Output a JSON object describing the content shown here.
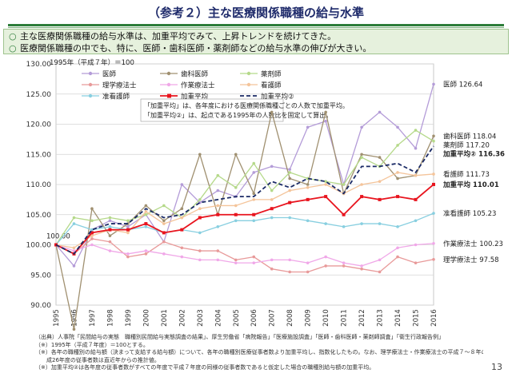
{
  "title": "（参考２）主な医療関係職種の給与水準",
  "bullets": [
    "主な医療関係職種の給与水準は、加重平均でみて、上昇トレンドを続けてきた。",
    "医療関係職種の中でも、特に、医師・歯科医師・薬剤師などの給与水準の伸びが大きい。"
  ],
  "bullet_mark": "○",
  "chart_data": {
    "type": "line",
    "base_note": "1995年（平成７年）＝100",
    "x": [
      "1995",
      "1996",
      "1997",
      "1998",
      "1999",
      "2000",
      "2001",
      "2002",
      "2003",
      "2004",
      "2005",
      "2006",
      "2007",
      "2008",
      "2009",
      "2010",
      "2011",
      "2012",
      "2013",
      "2014",
      "2015",
      "2016"
    ],
    "ylim": [
      90,
      130
    ],
    "yticks": [
      "90.00",
      "95.00",
      "100.00",
      "105.00",
      "110.00",
      "115.00",
      "120.00",
      "125.00",
      "130.00"
    ],
    "start_label": "100.00",
    "annotation_lines": [
      "「加重平均」は、各年度における医療関係職種ごとの人数で加重平均。",
      "「加重平均②」は、起点である1995年の人数比を固定して算出。"
    ],
    "series": [
      {
        "name": "医師",
        "color": "#b49cd8",
        "width": 1.3,
        "dash": "",
        "marker": "dot",
        "end_label": "医師 126.64",
        "values": [
          100,
          96.5,
          102.5,
          104,
          103,
          105,
          100.5,
          110,
          107,
          109,
          108,
          112,
          113,
          112.5,
          119.5,
          120.5,
          110,
          119.5,
          122,
          119.5,
          116,
          126.64
        ]
      },
      {
        "name": "歯科医師",
        "color": "#a09070",
        "width": 1.3,
        "dash": "",
        "marker": "dot",
        "end_label": "歯科医師 118.04",
        "values": [
          100,
          86,
          106,
          101.5,
          103.5,
          106.5,
          104,
          106,
          115,
          105,
          115,
          108.5,
          122,
          111,
          110,
          122,
          108.5,
          115,
          114.5,
          111,
          111.5,
          118.04
        ]
      },
      {
        "name": "薬剤師",
        "color": "#b5d98a",
        "width": 1.3,
        "dash": "",
        "marker": "dot",
        "end_label": "薬剤師 117.20",
        "values": [
          100,
          104.5,
          104,
          104.5,
          104,
          105,
          106.5,
          104.5,
          107.5,
          111.5,
          109.5,
          113.5,
          109,
          112,
          111,
          110.5,
          110,
          114.5,
          113,
          116.5,
          119,
          117.2
        ]
      },
      {
        "name": "理学療法士",
        "color": "#e89a9a",
        "width": 1.3,
        "dash": "",
        "marker": "dot",
        "end_label": "理学療法士 97.58",
        "values": [
          100,
          98.5,
          101,
          100.5,
          98,
          98.5,
          100.5,
          99.5,
          99,
          99,
          97.5,
          98,
          96,
          95.5,
          95.5,
          96.5,
          96.5,
          96,
          95.5,
          98,
          97,
          97.58
        ]
      },
      {
        "name": "作業療法士",
        "color": "#f0a8e8",
        "width": 1.3,
        "dash": "",
        "marker": "dot",
        "end_label": "作業療法士 100.23",
        "values": [
          100,
          99,
          100,
          99,
          98.5,
          99,
          98.5,
          98,
          97.5,
          97.5,
          97,
          97,
          97.5,
          97.5,
          97,
          98,
          97,
          96.5,
          97.5,
          99.5,
          100,
          100.23
        ]
      },
      {
        "name": "看護師",
        "color": "#f4c49a",
        "width": 1.3,
        "dash": "",
        "marker": "dot",
        "end_label": "看護師 111.73",
        "values": [
          100,
          99.5,
          101.5,
          102.5,
          102,
          105.5,
          103.5,
          104.5,
          106,
          106.5,
          106.5,
          107.5,
          107.5,
          109,
          109.5,
          110,
          108.5,
          110,
          110.5,
          112,
          111.5,
          111.73
        ]
      },
      {
        "name": "准看護師",
        "color": "#88cfe0",
        "width": 1.3,
        "dash": "",
        "marker": "dot",
        "end_label": "准看護師 105.23",
        "values": [
          100,
          103.5,
          102.5,
          103,
          102.5,
          103,
          102,
          102.5,
          102,
          103,
          104,
          104,
          104.5,
          104.5,
          104,
          103.5,
          103,
          103.5,
          103.5,
          103,
          104,
          105.23
        ]
      },
      {
        "name": "加重平均",
        "color": "#e8141e",
        "width": 1.8,
        "dash": "",
        "marker": "square",
        "end_label": "加重平均 110.01",
        "values": [
          100,
          98.5,
          102,
          102.5,
          102.5,
          103.5,
          102,
          102.5,
          104.5,
          105,
          105,
          105,
          106,
          107,
          107.5,
          108,
          105,
          108,
          107.5,
          108,
          107.5,
          110.01
        ]
      },
      {
        "name": "加重平均②",
        "color": "#1a2a66",
        "width": 1.8,
        "dash": "5,3",
        "marker": "none",
        "end_label": "加重平均② 116.36",
        "values": [
          100,
          98.5,
          102.5,
          103.5,
          103.5,
          106,
          104.5,
          105,
          107,
          107.5,
          108,
          108,
          110.5,
          109.5,
          111,
          110.5,
          108.5,
          113,
          113,
          113.5,
          112,
          116.36
        ]
      }
    ]
  },
  "footnotes": [
    "（出典）人事院「民間給与の実態　職種別民間給与実態調査の結果」、厚生労働省「病院報告」「医療施設調査」「医師・歯科医師・薬剤師調査」「衛生行政報告例」",
    "（※）1995年（平成７年度）＝100とする。",
    "（※）各年の職種別の給与額（決まって支給する給与額）について、各年の職種別医療従事者数より加重平均し、指数化したもの。なお、理学療法士・作業療法士の平成７〜８年の給与額、各職種の平",
    "　　成26年度の従事者数は直近年からの推計値。",
    "（※）加重平均②は各年度の従事者数がすべての年度で平成７年度の同様の従事者数であると仮定した場合の職種別給与額の加重平均。"
  ],
  "page_number": "13"
}
